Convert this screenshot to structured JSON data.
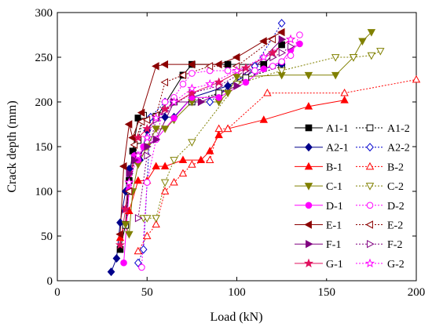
{
  "chart_data": {
    "type": "line",
    "xlabel": "Load (kN)",
    "ylabel": "Crack depth (mm)",
    "xlim": [
      0,
      200
    ],
    "ylim": [
      0,
      300
    ],
    "xticks": [
      0,
      50,
      100,
      150,
      200
    ],
    "yticks": [
      0,
      50,
      100,
      150,
      200,
      250,
      300
    ],
    "grid": false,
    "legend_position": "inside-bottom-right",
    "series": [
      {
        "name": "A1-1",
        "color": "#000000",
        "marker": "square",
        "filled": true,
        "dash": "solid",
        "x": [
          35,
          38,
          40,
          42,
          45,
          55,
          70,
          75,
          95,
          115,
          125
        ],
        "y": [
          35,
          63,
          112,
          145,
          182,
          182,
          230,
          242,
          242,
          242,
          264
        ]
      },
      {
        "name": "A1-2",
        "color": "#000000",
        "marker": "square",
        "filled": false,
        "dash": "dotted",
        "x": [
          38,
          40,
          43,
          45,
          48,
          55,
          65,
          75,
          90,
          105,
          125
        ],
        "y": [
          62,
          100,
          135,
          157,
          185,
          184,
          200,
          200,
          210,
          227,
          240
        ]
      },
      {
        "name": "A2-1",
        "color": "#00008B",
        "marker": "diamond",
        "filled": true,
        "dash": "solid",
        "x": [
          30,
          33,
          35,
          38,
          40,
          43,
          46,
          50,
          55,
          60,
          65,
          75,
          95,
          110,
          125
        ],
        "y": [
          10,
          25,
          65,
          100,
          125,
          140,
          135,
          168,
          182,
          183,
          183,
          205,
          218,
          235,
          242
        ]
      },
      {
        "name": "A2-2",
        "color": "#0000CD",
        "marker": "diamond",
        "filled": false,
        "dash": "dotted",
        "x": [
          45,
          48,
          52,
          60,
          85,
          110,
          125
        ],
        "y": [
          20,
          35,
          183,
          200,
          200,
          240,
          288
        ]
      },
      {
        "name": "B-1",
        "color": "#FF0000",
        "marker": "triangle-up",
        "filled": true,
        "dash": "solid",
        "x": [
          35,
          40,
          45,
          50,
          55,
          60,
          70,
          80,
          85,
          90,
          95,
          115,
          140,
          160
        ],
        "y": [
          48,
          78,
          112,
          112,
          128,
          128,
          135,
          135,
          145,
          163,
          170,
          180,
          195,
          202
        ]
      },
      {
        "name": "B-2",
        "color": "#FF0000",
        "marker": "triangle-up",
        "filled": false,
        "dash": "dotted",
        "x": [
          45,
          50,
          55,
          60,
          65,
          70,
          75,
          85,
          90,
          95,
          117,
          160,
          200
        ],
        "y": [
          33,
          50,
          63,
          100,
          110,
          120,
          130,
          135,
          170,
          170,
          210,
          210,
          225
        ]
      },
      {
        "name": "C-1",
        "color": "#808000",
        "marker": "triangle-down",
        "filled": true,
        "dash": "solid",
        "x": [
          38,
          40,
          42,
          45,
          50,
          55,
          60,
          65,
          75,
          90,
          95,
          100,
          125,
          140,
          155,
          165,
          170,
          175
        ],
        "y": [
          63,
          52,
          100,
          130,
          150,
          170,
          170,
          180,
          200,
          200,
          210,
          228,
          230,
          230,
          230,
          250,
          268,
          278
        ]
      },
      {
        "name": "C-2",
        "color": "#808000",
        "marker": "triangle-down",
        "filled": false,
        "dash": "dotted",
        "x": [
          48,
          50,
          55,
          60,
          65,
          75,
          100,
          125,
          155,
          165,
          175,
          180
        ],
        "y": [
          70,
          70,
          70,
          110,
          135,
          155,
          220,
          235,
          250,
          250,
          252,
          257
        ]
      },
      {
        "name": "D-1",
        "color": "#FF00FF",
        "marker": "circle",
        "filled": true,
        "dash": "solid",
        "x": [
          37,
          40,
          43,
          45,
          48,
          55,
          65,
          75,
          90,
          105,
          115,
          125,
          130,
          135
        ],
        "y": [
          20,
          102,
          140,
          135,
          150,
          158,
          182,
          205,
          205,
          222,
          237,
          245,
          258,
          265
        ]
      },
      {
        "name": "D-2",
        "color": "#FF00FF",
        "marker": "circle",
        "filled": false,
        "dash": "dotted",
        "x": [
          47,
          50,
          55,
          60,
          65,
          70,
          75,
          85,
          95,
          110,
          120,
          125,
          130,
          135
        ],
        "y": [
          15,
          110,
          158,
          200,
          205,
          220,
          232,
          235,
          235,
          235,
          240,
          245,
          252,
          275
        ]
      },
      {
        "name": "E-1",
        "color": "#8B0000",
        "marker": "triangle-left",
        "filled": true,
        "dash": "solid",
        "x": [
          35,
          37,
          40,
          42,
          47,
          55,
          60,
          75,
          90,
          100,
          115,
          125
        ],
        "y": [
          52,
          128,
          175,
          160,
          188,
          240,
          242,
          242,
          242,
          250,
          268,
          278
        ]
      },
      {
        "name": "E-2",
        "color": "#8B0000",
        "marker": "triangle-left",
        "filled": false,
        "dash": "dotted",
        "x": [
          40,
          43,
          47,
          50,
          55,
          60,
          70,
          85,
          100,
          120
        ],
        "y": [
          100,
          152,
          178,
          180,
          185,
          222,
          230,
          240,
          240,
          270
        ]
      },
      {
        "name": "F-1",
        "color": "#800080",
        "marker": "triangle-right",
        "filled": true,
        "dash": "solid",
        "x": [
          38,
          40,
          43,
          45,
          50,
          55,
          65,
          80,
          100,
          125
        ],
        "y": [
          80,
          120,
          135,
          140,
          150,
          158,
          200,
          200,
          218,
          270
        ]
      },
      {
        "name": "F-2",
        "color": "#800080",
        "marker": "triangle-right",
        "filled": false,
        "dash": "dotted",
        "x": [
          45,
          50,
          55,
          60,
          75,
          90,
          105,
          120,
          125,
          130
        ],
        "y": [
          70,
          140,
          180,
          190,
          210,
          218,
          235,
          250,
          255,
          262
        ]
      },
      {
        "name": "G-1",
        "color": "#E0105F",
        "marker": "star",
        "filled": true,
        "dash": "solid",
        "x": [
          35,
          38,
          40,
          45,
          50,
          60,
          75,
          90,
          105,
          120,
          130
        ],
        "y": [
          40,
          80,
          110,
          160,
          170,
          192,
          210,
          222,
          238,
          255,
          270
        ]
      },
      {
        "name": "G-2",
        "color": "#FF00FF",
        "marker": "star",
        "filled": false,
        "dash": "dotted",
        "x": [
          40,
          45,
          50,
          55,
          65,
          75,
          85,
          100,
          115,
          130
        ],
        "y": [
          110,
          140,
          160,
          182,
          200,
          215,
          220,
          235,
          250,
          270
        ]
      }
    ]
  }
}
